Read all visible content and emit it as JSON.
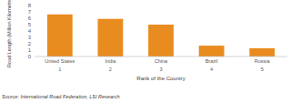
{
  "chart_data": {
    "type": "bar",
    "y_label": "Road Length (Million Kilometres)",
    "x_label": "Rank of the Country",
    "source": "Source: International Road Federation, LSI Research",
    "categories": [
      "United States",
      "India",
      "China",
      "Brazil",
      "Russia"
    ],
    "ranks": [
      1,
      2,
      3,
      4,
      5
    ],
    "values": [
      6.6,
      5.9,
      5.0,
      1.7,
      1.3
    ],
    "color": "#e98c1f",
    "ylim": [
      0,
      8
    ],
    "yticks": [
      0,
      1,
      2,
      3,
      4,
      5,
      6,
      7,
      8
    ],
    "grid": false
  }
}
